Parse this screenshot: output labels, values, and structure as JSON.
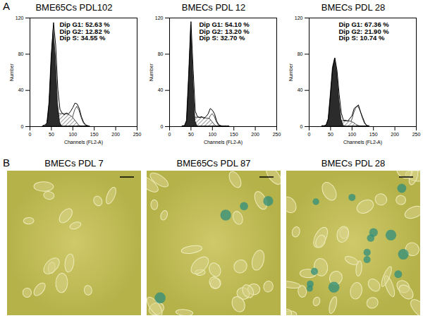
{
  "panel_labels": [
    "A",
    "B"
  ],
  "chart_data": [
    {
      "type": "area",
      "title": "BME65Cs PDL102",
      "x_label": "Channels (FL2-A)",
      "y_label": "Number",
      "x": [
        30,
        35,
        40,
        45,
        50,
        55,
        60,
        65,
        70,
        75,
        80,
        85,
        90,
        95,
        100,
        105,
        110,
        115,
        120,
        125,
        130,
        135,
        140
      ],
      "series": [
        {
          "name": "Dip G2",
          "color": "#ffffff",
          "values": [
            0,
            0,
            0,
            0,
            0,
            0,
            0,
            0,
            0,
            0,
            0,
            0,
            1,
            4,
            10,
            18,
            22,
            18,
            10,
            4,
            1,
            0,
            0
          ]
        },
        {
          "name": "Dip S",
          "color": "#555555",
          "line_style": "hatched",
          "values": [
            0,
            0,
            0,
            0,
            2,
            8,
            12,
            14,
            14,
            14,
            14,
            14,
            13,
            12,
            10,
            7,
            4,
            1,
            0,
            0,
            0,
            0,
            0
          ]
        },
        {
          "name": "Dip G1",
          "color": "#2b2b2b",
          "values": [
            0,
            0,
            3,
            26,
            76,
            108,
            76,
            26,
            4,
            0,
            0,
            0,
            0,
            0,
            0,
            0,
            0,
            0,
            0,
            0,
            0,
            0,
            0
          ]
        },
        {
          "type": "line",
          "color": "#000000",
          "values": [
            1,
            2,
            4,
            27,
            79,
            115,
            90,
            41,
            19,
            15,
            13,
            15,
            14,
            17,
            21,
            26,
            25,
            20,
            11,
            5,
            2,
            1,
            0
          ]
        }
      ],
      "annotations": [
        "Dip G1: 52.63 %",
        "Dip G2: 12.82 %",
        "Dip S: 34.55 %"
      ],
      "xlim": [
        0,
        250
      ],
      "xticks": [
        0,
        50,
        100,
        150,
        200,
        250
      ],
      "ylim": [
        0,
        120
      ],
      "yticks": [
        0,
        40,
        80,
        120
      ]
    },
    {
      "type": "area",
      "title": "BMECs PDL 12",
      "x_label": "Channels (FL2-A)",
      "y_label": "Number",
      "x": [
        30,
        35,
        40,
        45,
        50,
        55,
        60,
        65,
        70,
        75,
        80,
        85,
        90,
        95,
        100,
        105,
        110,
        115,
        120,
        125,
        130,
        135,
        140
      ],
      "series": [
        {
          "name": "Dip G2",
          "color": "#ffffff",
          "values": [
            0,
            0,
            0,
            0,
            0,
            0,
            0,
            0,
            0,
            0,
            0,
            1,
            5,
            11,
            14,
            11,
            5,
            1,
            0,
            0,
            0,
            0,
            0
          ]
        },
        {
          "name": "Dip S",
          "color": "#555555",
          "line_style": "hatched",
          "values": [
            0,
            0,
            0,
            1,
            3,
            9,
            10,
            10,
            10,
            10,
            10,
            9,
            9,
            8,
            5,
            2,
            0,
            0,
            0,
            0,
            0,
            0,
            0
          ]
        },
        {
          "name": "Dip G1",
          "color": "#2b2b2b",
          "values": [
            0,
            0,
            6,
            55,
            112,
            55,
            6,
            0,
            0,
            0,
            0,
            0,
            0,
            0,
            0,
            0,
            0,
            0,
            0,
            0,
            0,
            0,
            0
          ]
        },
        {
          "type": "line",
          "color": "#000000",
          "values": [
            1,
            1,
            7,
            57,
            116,
            63,
            17,
            11,
            10,
            11,
            9,
            11,
            14,
            20,
            18,
            14,
            6,
            2,
            1,
            0,
            0,
            0,
            0
          ]
        }
      ],
      "annotations": [
        "Dip G1: 54.10 %",
        "Dip G2: 13.20 %",
        "Dip S: 32.70 %"
      ],
      "xlim": [
        0,
        250
      ],
      "xticks": [
        0,
        50,
        100,
        150,
        200,
        250
      ],
      "ylim": [
        0,
        120
      ],
      "yticks": [
        0,
        40,
        80,
        120
      ]
    },
    {
      "type": "area",
      "title": "BMECs PDL 28",
      "x_label": "Channels (FL2-A)",
      "y_label": "Number",
      "x": [
        30,
        35,
        40,
        45,
        50,
        55,
        60,
        65,
        70,
        75,
        80,
        85,
        90,
        95,
        100,
        105,
        110,
        115,
        120,
        125,
        130,
        135,
        140
      ],
      "series": [
        {
          "name": "Dip G2",
          "color": "#ffffff",
          "values": [
            0,
            0,
            0,
            0,
            0,
            0,
            0,
            0,
            0,
            0,
            0,
            0,
            0,
            2,
            7,
            15,
            21,
            22,
            17,
            9,
            3,
            1,
            0
          ]
        },
        {
          "name": "Dip S",
          "color": "#555555",
          "line_style": "hatched",
          "values": [
            0,
            0,
            0,
            0,
            0,
            0,
            0,
            3,
            5,
            6,
            6,
            6,
            6,
            6,
            5,
            4,
            2,
            1,
            0,
            0,
            0,
            0,
            0
          ]
        },
        {
          "name": "Dip G1",
          "color": "#2b2b2b",
          "values": [
            0,
            0,
            1,
            8,
            35,
            65,
            75,
            60,
            30,
            8,
            1,
            0,
            0,
            0,
            0,
            0,
            0,
            0,
            0,
            0,
            0,
            0,
            0
          ]
        },
        {
          "type": "line",
          "color": "#000000",
          "values": [
            1,
            1,
            2,
            9,
            36,
            64,
            76,
            62,
            36,
            15,
            7,
            7,
            6,
            9,
            12,
            20,
            22,
            24,
            16,
            10,
            4,
            1,
            1
          ]
        }
      ],
      "annotations": [
        "Dip G1: 67.36 %",
        "Dip G2: 21.90 %",
        "Dip S: 10.74 %"
      ],
      "xlim": [
        0,
        250
      ],
      "xticks": [
        0,
        50,
        100,
        150,
        200,
        250
      ],
      "ylim": [
        0,
        120
      ],
      "yticks": [
        0,
        40,
        80,
        120
      ]
    }
  ],
  "images": [
    {
      "title": "BMECs PDL 7",
      "stained_cells": 0
    },
    {
      "title": "BME65Cs PDL 87",
      "stained_cells": 4
    },
    {
      "title": "BMECs PDL 28",
      "stained_cells": 14
    }
  ]
}
